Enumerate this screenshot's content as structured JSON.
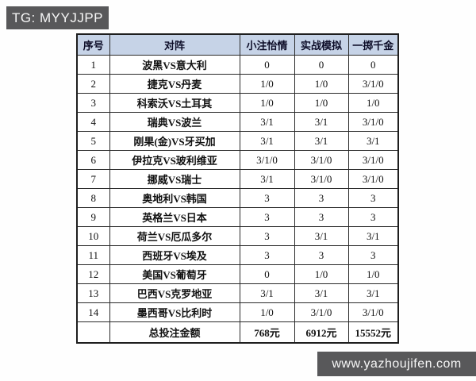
{
  "page": {
    "tg_label": "TG: MYYJJPP",
    "watermark": "www.yazhoujifen.com"
  },
  "colors": {
    "overlay_box_bg": "#58585a",
    "overlay_text": "#f7f7f7",
    "header_bg": "#c6d3e7",
    "table_border": "#2a2a2a"
  },
  "table": {
    "headers": [
      "序号",
      "对阵",
      "小注怡情",
      "实战模拟",
      "一掷千金"
    ],
    "rows": [
      {
        "no": "1",
        "match": "波黑VS意大利",
        "v1": "0",
        "v2": "0",
        "v3": "0"
      },
      {
        "no": "2",
        "match": "捷克VS丹麦",
        "v1": "1/0",
        "v2": "1/0",
        "v3": "3/1/0"
      },
      {
        "no": "3",
        "match": "科索沃VS土耳其",
        "v1": "1/0",
        "v2": "1/0",
        "v3": "1/0"
      },
      {
        "no": "4",
        "match": "瑞典VS波兰",
        "v1": "3/1",
        "v2": "3/1",
        "v3": "3/1/0"
      },
      {
        "no": "5",
        "match": "刚果(金)VS牙买加",
        "v1": "3/1",
        "v2": "3/1",
        "v3": "3/1"
      },
      {
        "no": "6",
        "match": "伊拉克VS玻利维亚",
        "v1": "3/1/0",
        "v2": "3/1/0",
        "v3": "3/1/0"
      },
      {
        "no": "7",
        "match": "挪威VS瑞士",
        "v1": "3/1",
        "v2": "3/1/0",
        "v3": "3/1/0"
      },
      {
        "no": "8",
        "match": "奥地利VS韩国",
        "v1": "3",
        "v2": "3",
        "v3": "3"
      },
      {
        "no": "9",
        "match": "英格兰VS日本",
        "v1": "3",
        "v2": "3",
        "v3": "3"
      },
      {
        "no": "10",
        "match": "荷兰VS厄瓜多尔",
        "v1": "3",
        "v2": "3/1",
        "v3": "3/1"
      },
      {
        "no": "11",
        "match": "西班牙VS埃及",
        "v1": "3",
        "v2": "3",
        "v3": "3"
      },
      {
        "no": "12",
        "match": "美国VS葡萄牙",
        "v1": "0",
        "v2": "1/0",
        "v3": "1/0"
      },
      {
        "no": "13",
        "match": "巴西VS克罗地亚",
        "v1": "3/1",
        "v2": "3/1",
        "v3": "3/1"
      },
      {
        "no": "14",
        "match": "墨西哥VS比利时",
        "v1": "1/0",
        "v2": "3/1/0",
        "v3": "3/1/0"
      }
    ],
    "footer": {
      "no": "",
      "label": "总投注金额",
      "v1": "768元",
      "v2": "6912元",
      "v3": "15552元"
    }
  }
}
